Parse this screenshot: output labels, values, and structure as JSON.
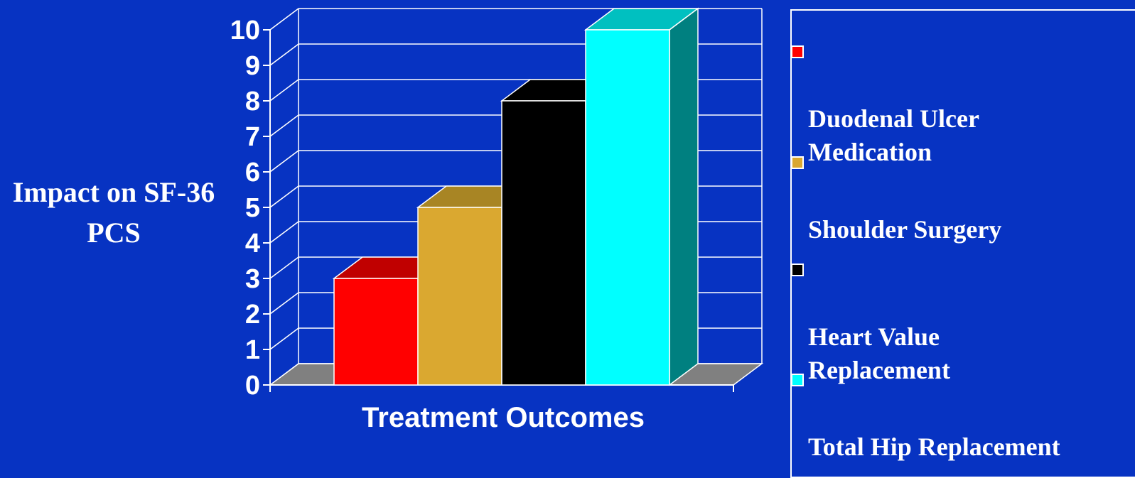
{
  "chart_data": {
    "type": "bar",
    "categories": [
      "Duodenal Ulcer Medication",
      "Shoulder Surgery",
      "Heart Value Replacement",
      "Total Hip Replacement"
    ],
    "values": [
      3,
      5,
      8,
      10
    ],
    "colors": [
      "#ff0000",
      "#daa830",
      "#000000",
      "#00ffff"
    ],
    "top_colors": [
      "#c00000",
      "#a88524",
      "#000000",
      "#00c0c0"
    ],
    "side_colors": [
      "#a00000",
      "#8a6a1c",
      "#000000",
      "#008080"
    ],
    "xlabel": "Treatment Outcomes",
    "ylabel": "Impact on SF-36 PCS",
    "ylim": [
      0,
      10
    ],
    "yticks": [
      "0",
      "1",
      "2",
      "3",
      "4",
      "5",
      "6",
      "7",
      "8",
      "9",
      "10"
    ],
    "grid": true,
    "legend_position": "right",
    "legend": [
      "Duodenal Ulcer\nMedication",
      "Shoulder Surgery",
      "Heart Value\nReplacement",
      "Total Hip Replacement"
    ]
  },
  "colors": {
    "background": "#0733c2",
    "grid": "#ffffff",
    "floor": "#808080"
  }
}
